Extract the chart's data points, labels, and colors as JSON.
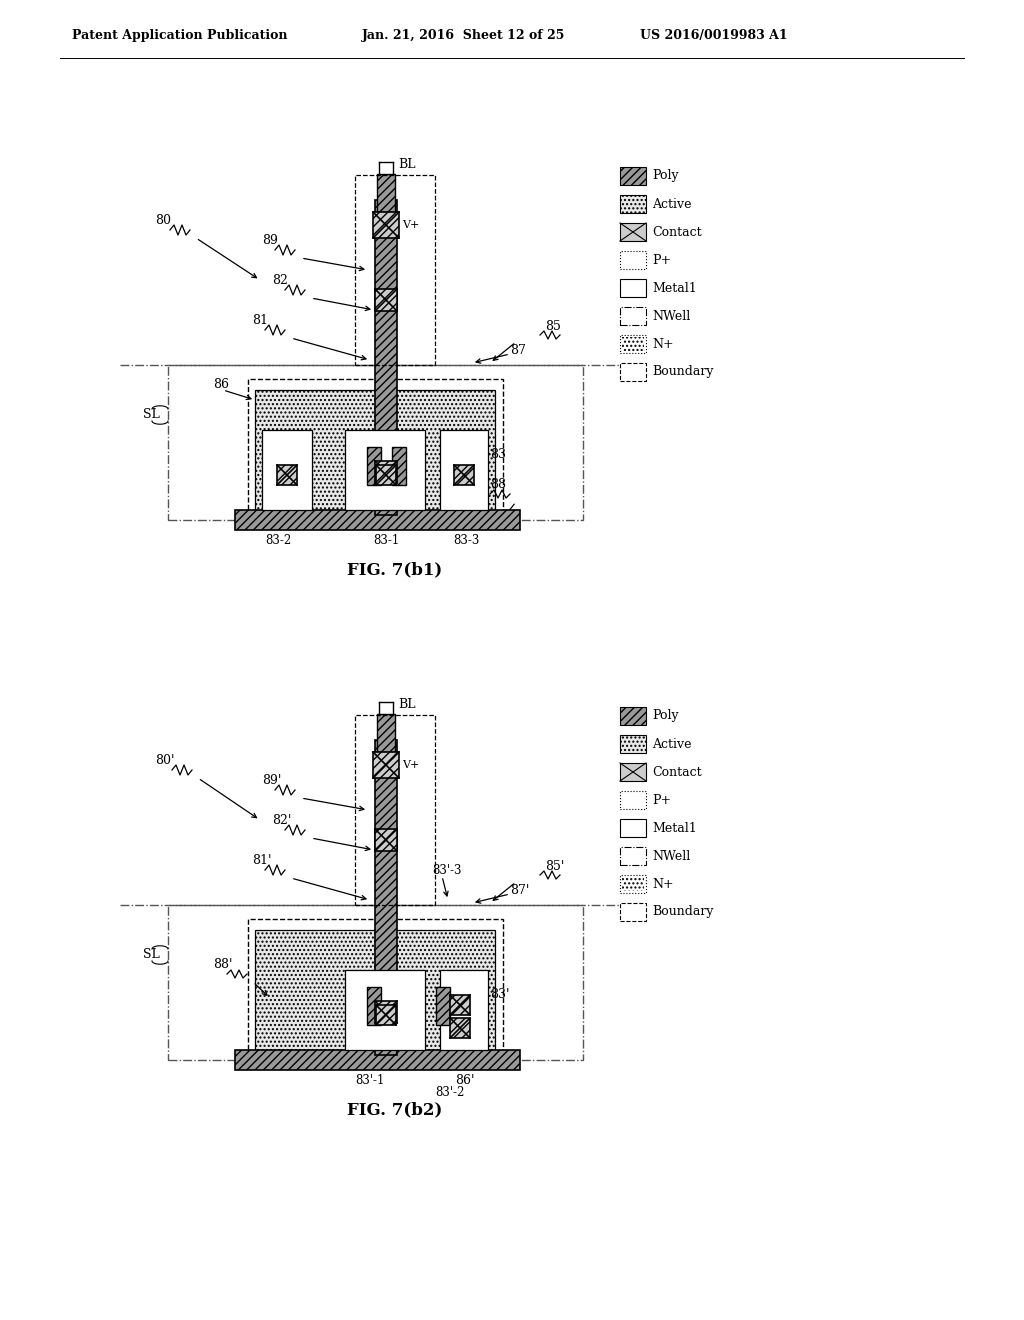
{
  "title_left": "Patent Application Publication",
  "title_mid": "Jan. 21, 2016  Sheet 12 of 25",
  "title_right": "US 2016/0019983 A1",
  "fig1_caption": "FIG. 7(b1)",
  "fig2_caption": "FIG. 7(b2)",
  "bg_color": "#ffffff"
}
